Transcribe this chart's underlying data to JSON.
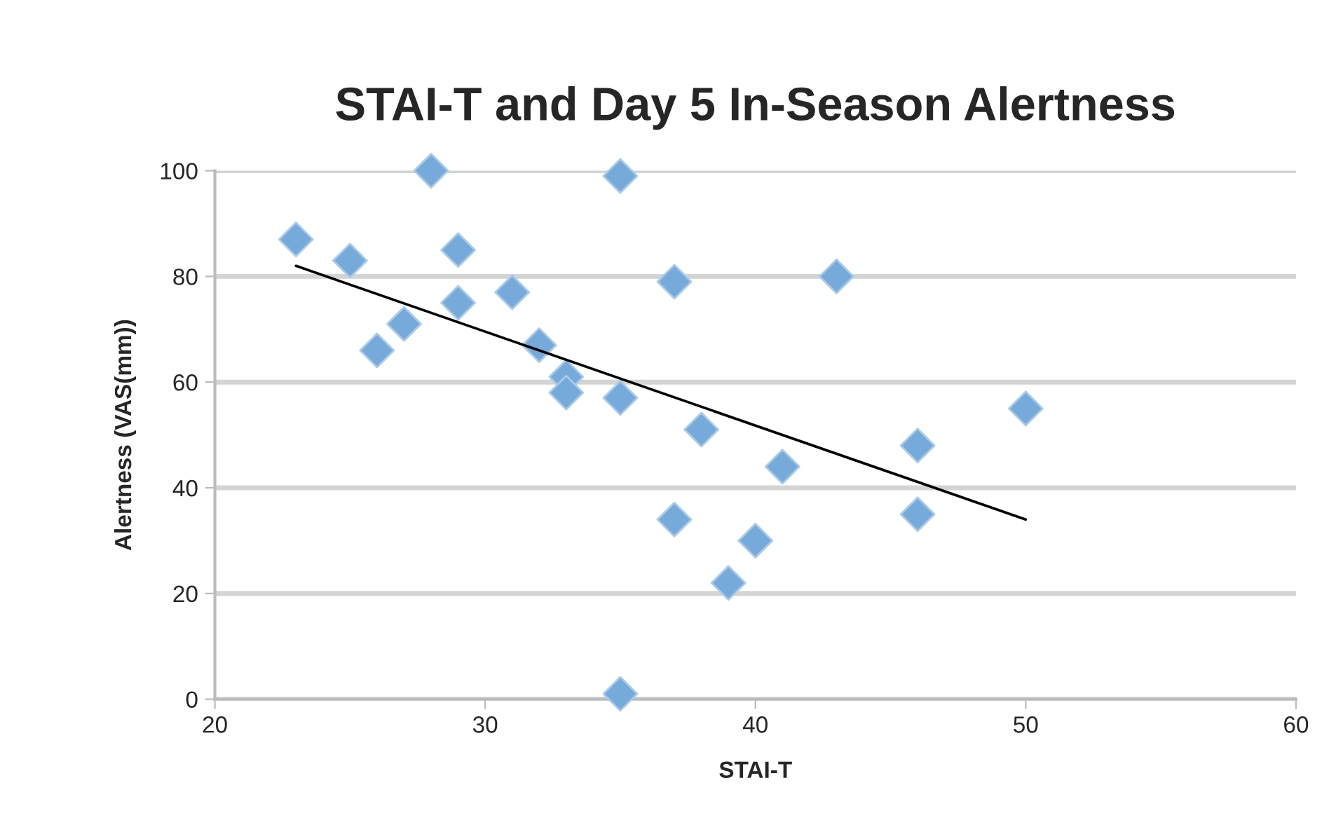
{
  "chart_data": {
    "type": "scatter",
    "title": "STAI-T and Day 5 In-Season Alertness",
    "xlabel": "STAI-T",
    "ylabel": "Alertness (VAS(mm))",
    "xlim": [
      20,
      60
    ],
    "xticks": [
      20,
      30,
      40,
      50,
      60
    ],
    "ylim": [
      0,
      100
    ],
    "yticks": [
      0,
      20,
      40,
      60,
      80,
      100
    ],
    "grid": "y",
    "legend": false,
    "marker": "diamond",
    "series": [
      {
        "color": "#75aadb",
        "x": [
          23,
          25,
          26,
          27,
          28,
          29,
          29,
          31,
          32,
          33,
          33,
          35,
          35,
          35,
          37,
          37,
          38,
          39,
          40,
          41,
          43,
          46,
          46,
          50
        ],
        "values": [
          87,
          83,
          66,
          71,
          100,
          85,
          75,
          77,
          67,
          61,
          58,
          99,
          57,
          1,
          79,
          34,
          51,
          22,
          30,
          44,
          80,
          48,
          35,
          55
        ]
      },
      {
        "type": "line",
        "color": "#000000",
        "x": [
          23,
          50
        ],
        "values": [
          82,
          34
        ],
        "marker": "none"
      }
    ]
  }
}
